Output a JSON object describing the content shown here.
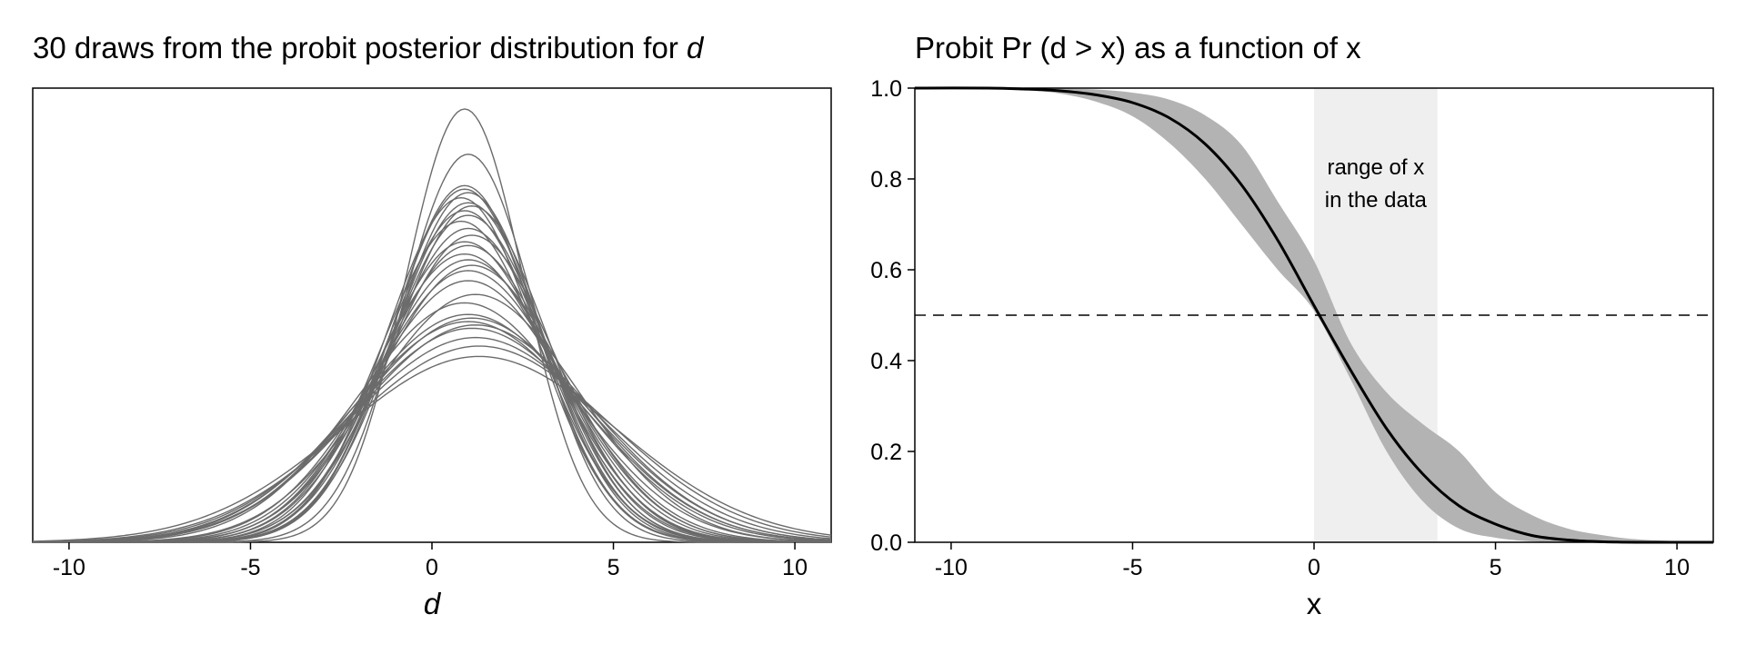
{
  "chart_data": [
    {
      "type": "line",
      "title": "30 draws from the probit posterior distribution for ",
      "title_var": "d",
      "xlabel": "d",
      "ylabel": "",
      "xlim": [
        -11,
        11
      ],
      "xticks": [
        -10,
        -5,
        0,
        5,
        10
      ],
      "xtick_labels": [
        "-10",
        "-5",
        "0",
        "5",
        "10"
      ],
      "grid": false,
      "line_color": "#6b6b6b",
      "draws": [
        {
          "mu": 0.9,
          "sigma": 1.63
        },
        {
          "mu": 1.0,
          "sigma": 1.82
        },
        {
          "mu": 0.9,
          "sigma": 1.98
        },
        {
          "mu": 1.0,
          "sigma": 2.02
        },
        {
          "mu": 0.8,
          "sigma": 2.05
        },
        {
          "mu": 1.0,
          "sigma": 2.08
        },
        {
          "mu": 1.1,
          "sigma": 2.1
        },
        {
          "mu": 0.9,
          "sigma": 2.13
        },
        {
          "mu": 1.0,
          "sigma": 2.16
        },
        {
          "mu": 0.8,
          "sigma": 2.2
        },
        {
          "mu": 1.0,
          "sigma": 2.25
        },
        {
          "mu": 1.1,
          "sigma": 2.3
        },
        {
          "mu": 0.9,
          "sigma": 2.35
        },
        {
          "mu": 1.0,
          "sigma": 2.38
        },
        {
          "mu": 0.9,
          "sigma": 2.45
        },
        {
          "mu": 1.0,
          "sigma": 2.5
        },
        {
          "mu": 1.1,
          "sigma": 2.55
        },
        {
          "mu": 1.0,
          "sigma": 2.7
        },
        {
          "mu": 0.9,
          "sigma": 2.95
        },
        {
          "mu": 1.0,
          "sigma": 3.1
        },
        {
          "mu": 1.1,
          "sigma": 3.15
        },
        {
          "mu": 1.0,
          "sigma": 3.2
        },
        {
          "mu": 1.2,
          "sigma": 3.25
        },
        {
          "mu": 1.1,
          "sigma": 3.3
        },
        {
          "mu": 1.2,
          "sigma": 3.45
        },
        {
          "mu": 1.3,
          "sigma": 3.6
        },
        {
          "mu": 1.3,
          "sigma": 3.8
        },
        {
          "mu": 1.2,
          "sigma": 2.85
        },
        {
          "mu": 1.0,
          "sigma": 2.6
        },
        {
          "mu": 0.9,
          "sigma": 2.0
        }
      ]
    },
    {
      "type": "line",
      "title": "Probit Pr (d > x) as a function of x",
      "xlabel": "x",
      "ylabel": "",
      "xlim": [
        -11,
        11
      ],
      "ylim": [
        0,
        1
      ],
      "xticks": [
        -10,
        -5,
        0,
        5,
        10
      ],
      "xtick_labels": [
        "-10",
        "-5",
        "0",
        "5",
        "10"
      ],
      "yticks": [
        0,
        0.2,
        0.4,
        0.6,
        0.8,
        1.0
      ],
      "ytick_labels": [
        "0.0",
        "0.2",
        "0.4",
        "0.6",
        "0.8",
        "1.0"
      ],
      "grid": false,
      "series": [
        {
          "role": "mean",
          "color": "#000000",
          "x": [
            -11,
            -9,
            -8,
            -7,
            -6,
            -5,
            -4,
            -3,
            -2,
            -1,
            0,
            1,
            2,
            3,
            4,
            5,
            6,
            7,
            8,
            9,
            11
          ],
          "y": [
            1.0,
            1.0,
            0.998,
            0.994,
            0.985,
            0.968,
            0.935,
            0.877,
            0.787,
            0.665,
            0.521,
            0.38,
            0.25,
            0.15,
            0.08,
            0.04,
            0.015,
            0.005,
            0.001,
            0.0,
            0.0
          ]
        }
      ],
      "band": {
        "color": "#b3b3b3",
        "x": [
          -11,
          -9,
          -8,
          -7,
          -6,
          -5,
          -4,
          -3,
          -2,
          -1,
          0,
          1,
          2,
          3,
          4,
          5,
          6,
          7,
          8,
          9,
          11
        ],
        "lower": [
          1.0,
          0.999,
          0.996,
          0.988,
          0.97,
          0.938,
          0.88,
          0.8,
          0.7,
          0.6,
          0.51,
          0.36,
          0.2,
          0.09,
          0.03,
          0.01,
          0.002,
          0.0,
          0.0,
          0.0,
          0.0
        ],
        "upper": [
          1.0,
          1.0,
          1.0,
          0.999,
          0.997,
          0.99,
          0.975,
          0.94,
          0.875,
          0.75,
          0.62,
          0.44,
          0.33,
          0.26,
          0.2,
          0.11,
          0.06,
          0.03,
          0.015,
          0.006,
          0.0
        ]
      },
      "data_range": {
        "x_from": 0,
        "x_to": 3.4,
        "color": "#efefef",
        "label_line1": "range of x",
        "label_line2": "in the data"
      },
      "reference_line": {
        "y": 0.5,
        "style": "dashed",
        "color": "#000000"
      }
    }
  ]
}
